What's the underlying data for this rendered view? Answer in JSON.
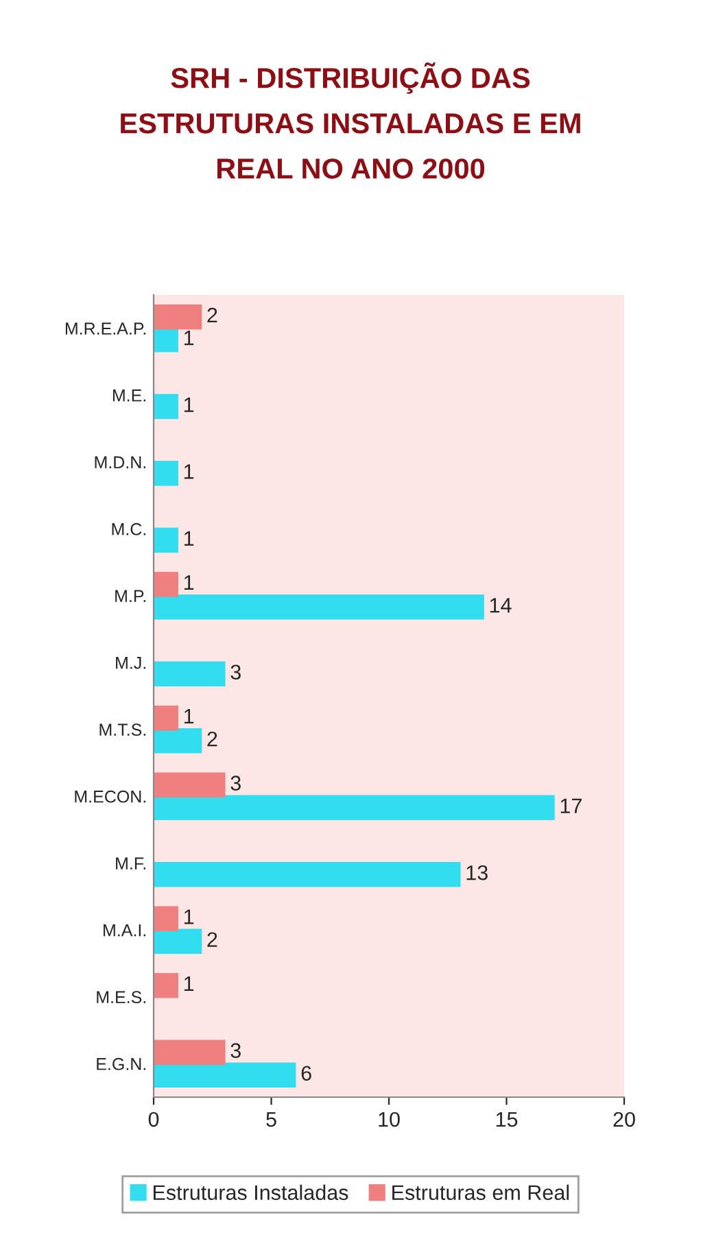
{
  "chart_data": {
    "type": "bar",
    "orientation": "horizontal",
    "title": "SRH - DISTRIBUIÇÃO DAS\nESTRUTURAS INSTALADAS E EM\nREAL NO ANO 2000",
    "categories": [
      "M.R.E.A.P.",
      "M.E.",
      "M.D.N.",
      "M.C.",
      "M.P.",
      "M.J.",
      "M.T.S.",
      "M.ECON.",
      "M.F.",
      "M.A.I.",
      "M.E.S.",
      "E.G.N."
    ],
    "series": [
      {
        "name": "Estruturas Instaladas",
        "color": "#33ddf0",
        "values": [
          1,
          1,
          1,
          1,
          14,
          3,
          2,
          17,
          13,
          2,
          null,
          6
        ]
      },
      {
        "name": "Estruturas em Real",
        "color": "#f08080",
        "values": [
          2,
          null,
          null,
          null,
          1,
          null,
          1,
          3,
          null,
          1,
          1,
          3
        ]
      }
    ],
    "xlim": [
      0,
      20
    ],
    "xticks": [
      0,
      5,
      10,
      15,
      20
    ],
    "data_labels": true,
    "legend": "bottom",
    "grid": false
  }
}
